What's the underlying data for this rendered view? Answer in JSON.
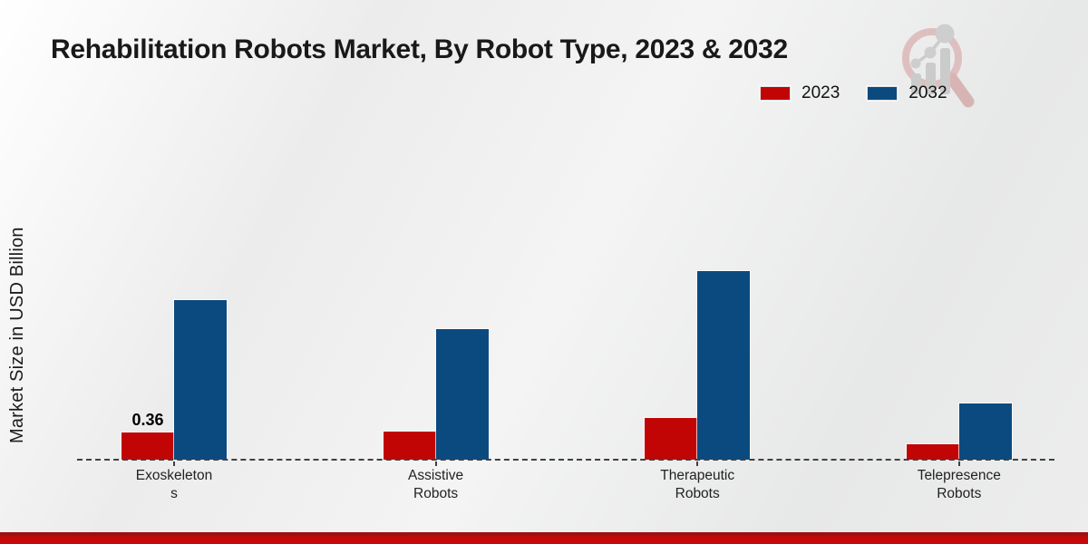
{
  "page": {
    "title": "Rehabilitation Robots Market, By Robot Type, 2023 & 2032"
  },
  "chart_data": {
    "type": "bar",
    "title": "Rehabilitation Robots Market, By Robot Type, 2023 & 2032",
    "xlabel": "",
    "ylabel": "Market Size in USD Billion",
    "categories": [
      "Exoskeletons",
      "Assistive Robots",
      "Therapeutic Robots",
      "Telepresence Robots"
    ],
    "category_label_lines": [
      [
        "Exoskeleton",
        "s"
      ],
      [
        "Assistive",
        "Robots"
      ],
      [
        "Therapeutic",
        "Robots"
      ],
      [
        "Telepresence",
        "Robots"
      ]
    ],
    "series": [
      {
        "name": "2023",
        "color": "#c10505",
        "values": [
          0.36,
          0.37,
          0.55,
          0.21
        ]
      },
      {
        "name": "2032",
        "color": "#0b4a7f",
        "values": [
          2.11,
          1.73,
          2.5,
          0.74
        ]
      }
    ],
    "shown_value_labels": [
      {
        "category": "Exoskeletons",
        "series": "2023",
        "text": "0.36"
      }
    ],
    "ylim": [
      0,
      2.75
    ],
    "grid": false,
    "legend_position": "top-right",
    "baseline_style": "dashed"
  },
  "branding": {
    "logo_name": "growth-magnifier-logo",
    "footer_bar_color": "#c50808",
    "logo_ring_color": "#dcb8b8",
    "logo_bars_color": "#c6c6c6"
  }
}
